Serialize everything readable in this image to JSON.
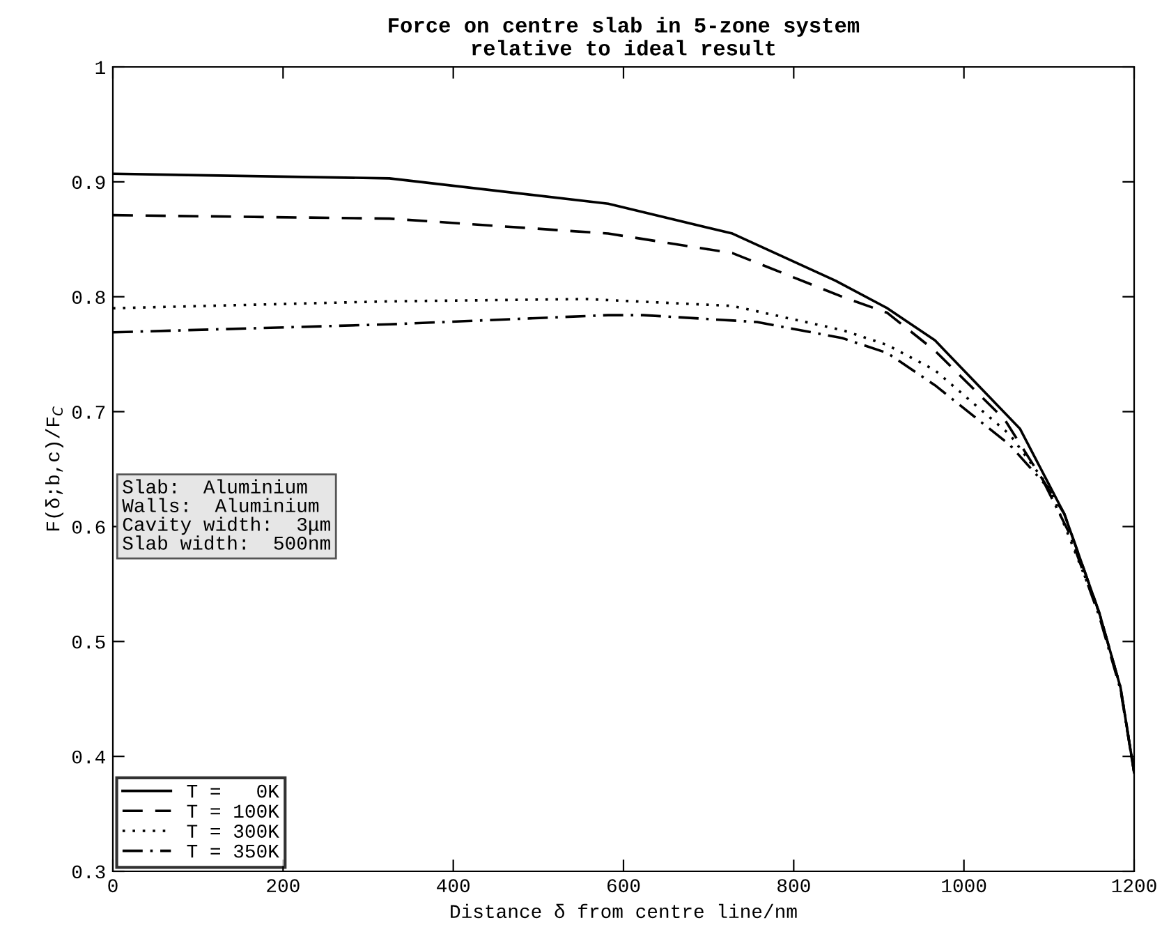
{
  "chart_data": {
    "type": "line",
    "title": "Force on centre slab in 5-zone system\nrelative to ideal result",
    "xlabel": "Distance δ from centre line/nm",
    "ylabel": "F(δ;b,c)/F$_{C}$",
    "xlim": [
      0,
      1200
    ],
    "xticks": [
      0,
      200,
      400,
      600,
      800,
      1000,
      1200
    ],
    "ylim": [
      0.3,
      1
    ],
    "yticks": [
      0.3,
      0.4,
      0.5,
      0.6,
      0.7,
      0.8,
      0.9,
      1
    ],
    "grid": false,
    "legend": "bottom left",
    "annotations": [
      "Slab:  Aluminium\nWalls:  Aluminium\nCavity width:  3μm\nSlab width:  500nm"
    ],
    "series": [
      {
        "name": "T =   0K",
        "color": "#000000",
        "line_style": "solid",
        "x": [
          0,
          325,
          582,
          728,
          849,
          910,
          966,
          1066,
          1118,
          1159,
          1184,
          1200
        ],
        "values": [
          0.907,
          0.903,
          0.881,
          0.855,
          0.814,
          0.79,
          0.762,
          0.685,
          0.611,
          0.525,
          0.46,
          0.386
        ]
      },
      {
        "name": "T = 100K",
        "color": "#000000",
        "line_style": "dashed",
        "x": [
          0,
          325,
          582,
          728,
          857,
          910,
          966,
          1048,
          1118,
          1159,
          1184,
          1200
        ],
        "values": [
          0.871,
          0.868,
          0.855,
          0.838,
          0.8,
          0.786,
          0.753,
          0.693,
          0.611,
          0.525,
          0.46,
          0.386
        ]
      },
      {
        "name": "T = 300K",
        "color": "#000000",
        "line_style": "dotted",
        "x": [
          0,
          325,
          556,
          728,
          857,
          910,
          966,
          1054,
          1101,
          1159,
          1184,
          1200
        ],
        "values": [
          0.79,
          0.796,
          0.798,
          0.792,
          0.771,
          0.758,
          0.736,
          0.68,
          0.633,
          0.525,
          0.46,
          0.386
        ]
      },
      {
        "name": "T = 350K",
        "color": "#000000",
        "line_style": "dashdot",
        "x": [
          0,
          325,
          582,
          623,
          757,
          857,
          910,
          966,
          1054,
          1095,
          1124,
          1159,
          1184,
          1200
        ],
        "values": [
          0.769,
          0.776,
          0.784,
          0.784,
          0.778,
          0.764,
          0.751,
          0.723,
          0.671,
          0.637,
          0.594,
          0.522,
          0.458,
          0.386
        ]
      }
    ]
  }
}
